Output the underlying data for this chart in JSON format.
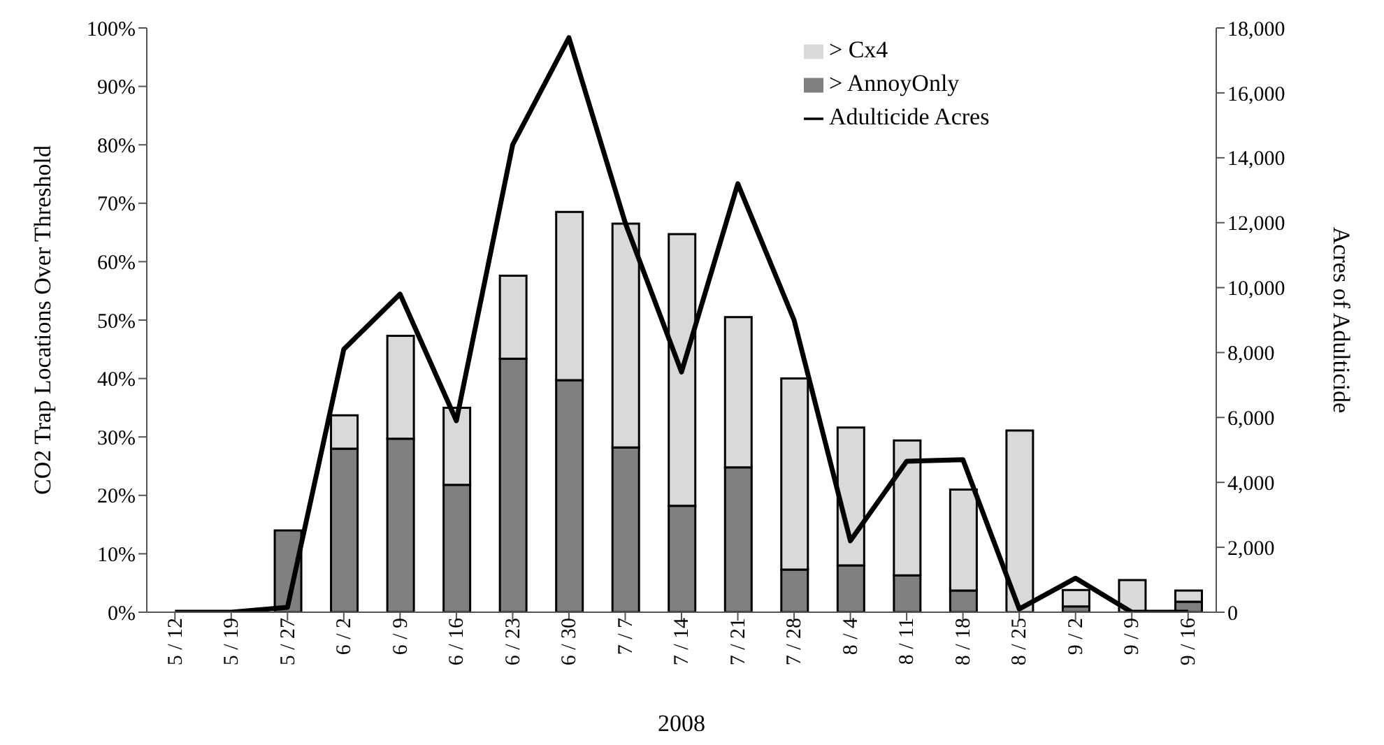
{
  "chart_data": {
    "type": "bar",
    "stacked": true,
    "xlabel": "2008",
    "ylabel": "CO2 Trap Locations Over Threshold",
    "y2label": "Acres of Adulticide",
    "categories": [
      "5 / 12",
      "5 / 19",
      "5 / 27",
      "6 / 2",
      "6 / 9",
      "6 / 16",
      "6 / 23",
      "6 / 30",
      "7 / 7",
      "7 / 14",
      "7 / 21",
      "7 / 28",
      "8 / 4",
      "8 / 11",
      "8 / 18",
      "8 / 25",
      "9 / 2",
      "9 / 9",
      "9 / 16"
    ],
    "series": [
      {
        "name": "> AnnoyOnly",
        "color": "#808080",
        "values": [
          0,
          0,
          14,
          28,
          29.7,
          21.8,
          43.4,
          39.7,
          28.2,
          18.2,
          24.8,
          7.3,
          8,
          6.3,
          3.7,
          0,
          1,
          0,
          1.8
        ]
      },
      {
        "name": "> Cx4",
        "color": "#d9d9d9",
        "values": [
          0,
          0,
          0,
          5.7,
          17.6,
          13.2,
          14.2,
          28.8,
          38.3,
          46.5,
          25.7,
          32.7,
          23.6,
          23.1,
          17.3,
          31.1,
          2.8,
          5.5,
          1.9
        ]
      },
      {
        "name": "Adulticide Acres",
        "type": "line",
        "axis": "y2",
        "color": "#000000",
        "values": [
          0,
          0,
          150,
          8100,
          9800,
          5900,
          14400,
          17700,
          12000,
          7400,
          13200,
          9000,
          2200,
          4650,
          4700,
          100,
          1050,
          0,
          0
        ]
      }
    ],
    "ylim": [
      0,
      100
    ],
    "yticks": [
      {
        "value": 0,
        "label": "0%"
      },
      {
        "value": 10,
        "label": "10%"
      },
      {
        "value": 20,
        "label": "20%"
      },
      {
        "value": 30,
        "label": "30%"
      },
      {
        "value": 40,
        "label": "40%"
      },
      {
        "value": 50,
        "label": "50%"
      },
      {
        "value": 60,
        "label": "60%"
      },
      {
        "value": 70,
        "label": "70%"
      },
      {
        "value": 80,
        "label": "80%"
      },
      {
        "value": 90,
        "label": "90%"
      },
      {
        "value": 100,
        "label": "100%"
      }
    ],
    "y2lim": [
      0,
      18000
    ],
    "y2ticks": [
      0,
      {
        "value": 2000,
        "label": "2,000"
      },
      {
        "value": 4000,
        "label": "4,000"
      },
      {
        "value": 6000,
        "label": "6,000"
      },
      {
        "value": 8000,
        "label": "8,000"
      },
      {
        "value": 10000,
        "label": "10,000"
      },
      {
        "value": 12000,
        "label": "12,000"
      },
      {
        "value": 14000,
        "label": "14,000"
      },
      {
        "value": 16000,
        "label": "16,000"
      },
      {
        "value": 18000,
        "label": "18,000"
      }
    ],
    "legend": "top right",
    "grid": false,
    "marker": "none"
  }
}
